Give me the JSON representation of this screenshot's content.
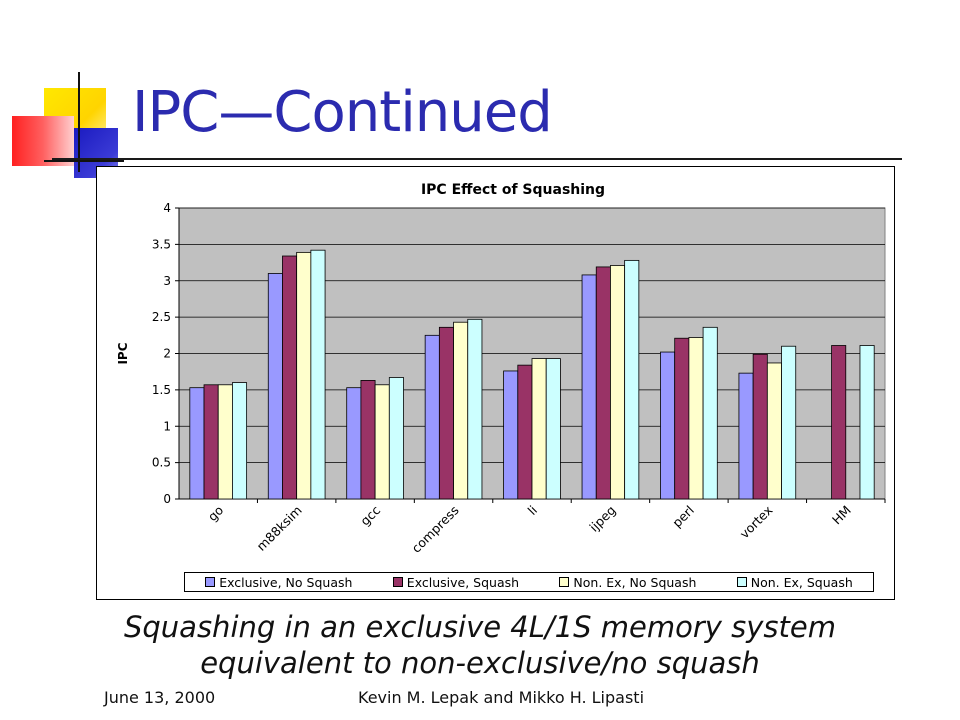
{
  "slide": {
    "title": "IPC—Continued",
    "caption_line1": "Squashing in an exclusive 4L/1S memory system",
    "caption_line2": "equivalent to non-exclusive/no squash",
    "footer_date": "June 13, 2000",
    "footer_authors": "Kevin M. Lepak and Mikko H. Lipasti",
    "colors": {
      "title": "#2B2BAF",
      "plot_background": "#C0C0C0"
    }
  },
  "chart_data": {
    "type": "bar",
    "title": "IPC Effect of Squashing",
    "xlabel": "",
    "ylabel": "IPC",
    "ylim": [
      0,
      4
    ],
    "yticks": [
      "0",
      "0.5",
      "1",
      "1.5",
      "2",
      "2.5",
      "3",
      "3.5",
      "4"
    ],
    "grid": true,
    "legend_position": "bottom",
    "categories": [
      "go",
      "m88ksim",
      "gcc",
      "compress",
      "li",
      "ijpeg",
      "perl",
      "vortex",
      "HM"
    ],
    "series": [
      {
        "name": "Exclusive, No Squash",
        "color": "#9999FF",
        "values": [
          1.53,
          3.1,
          1.53,
          2.25,
          1.76,
          3.08,
          2.02,
          1.73,
          null
        ]
      },
      {
        "name": "Exclusive, Squash",
        "color": "#993366",
        "values": [
          1.57,
          3.34,
          1.63,
          2.36,
          1.84,
          3.19,
          2.21,
          1.99,
          2.11
        ]
      },
      {
        "name": "Non. Ex, No Squash",
        "color": "#FFFFCC",
        "values": [
          1.57,
          3.39,
          1.57,
          2.43,
          1.93,
          3.21,
          2.22,
          1.87,
          null
        ]
      },
      {
        "name": "Non. Ex, Squash",
        "color": "#CCFFFF",
        "values": [
          1.6,
          3.42,
          1.67,
          2.47,
          1.93,
          3.28,
          2.36,
          2.1,
          2.11
        ]
      }
    ]
  }
}
